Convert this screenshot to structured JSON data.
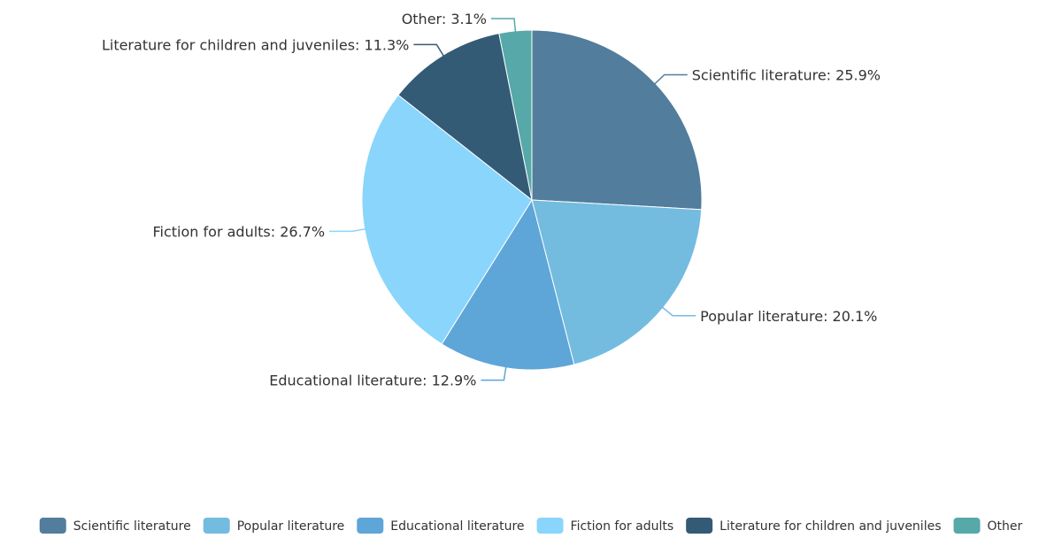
{
  "chart_data": {
    "type": "pie",
    "title": "",
    "slices": [
      {
        "label": "Scientific literature",
        "value": 25.9,
        "display": "Scientific literature: 25.9%",
        "color": "#527d9c"
      },
      {
        "label": "Popular literature",
        "value": 20.1,
        "display": "Popular literature: 20.1%",
        "color": "#74bbe0"
      },
      {
        "label": "Educational literature",
        "value": 12.9,
        "display": "Educational literature: 12.9%",
        "color": "#5ea5d8"
      },
      {
        "label": "Fiction for adults",
        "value": 26.7,
        "display": "Fiction for adults: 26.7%",
        "color": "#8ad5fb"
      },
      {
        "label": "Literature for children and juveniles",
        "value": 11.3,
        "display": "Literature for children and juveniles: 11.3%",
        "color": "#335b76"
      },
      {
        "label": "Other",
        "value": 3.1,
        "display": "Other: 3.1%",
        "color": "#57a8a8"
      }
    ],
    "legend_position": "bottom"
  }
}
